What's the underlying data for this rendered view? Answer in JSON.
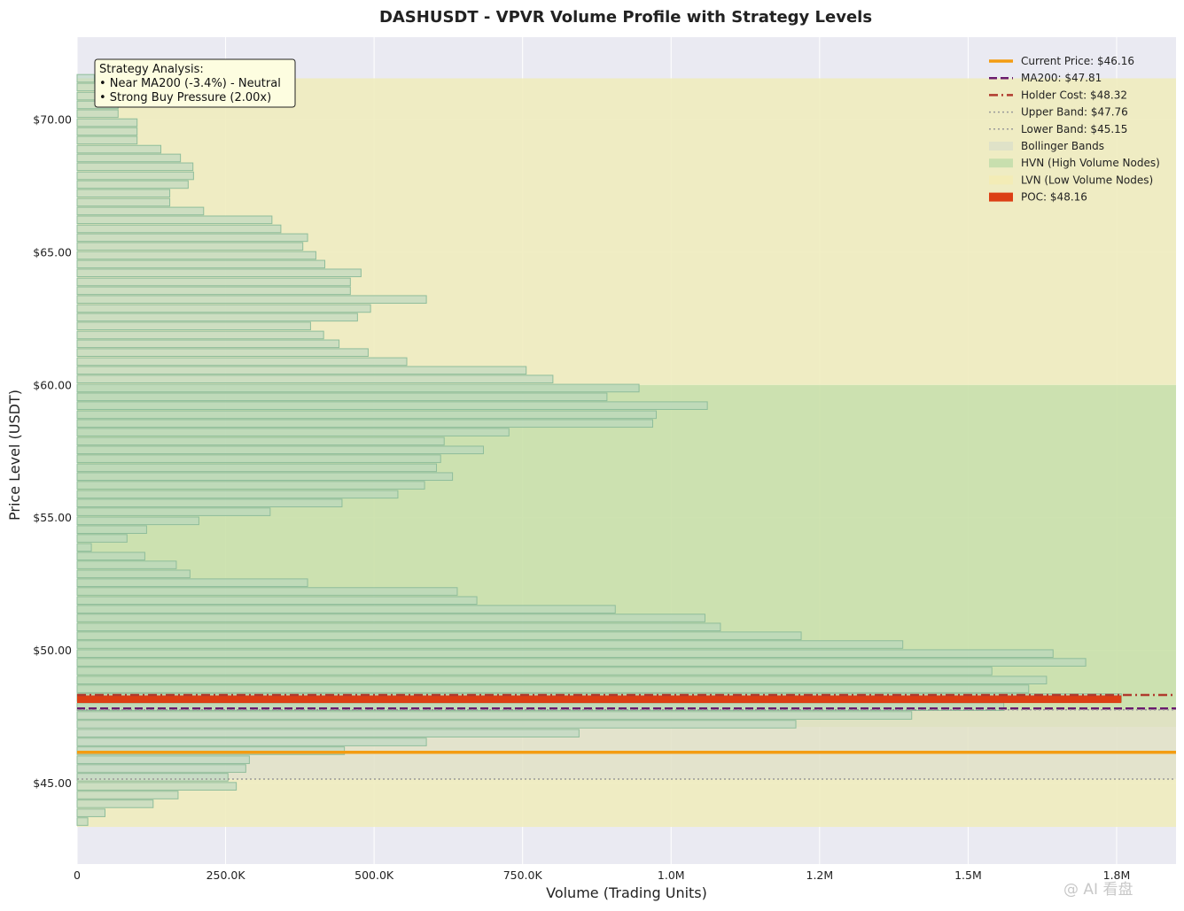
{
  "chart_data": {
    "type": "bar",
    "orientation": "horizontal",
    "title": "DASHUSDT - VPVR Volume Profile with Strategy Levels",
    "xlabel": "Volume (Trading Units)",
    "ylabel": "Price Level (USDT)",
    "xlim": [
      0,
      1850000
    ],
    "ylim": [
      41.95,
      73.1
    ],
    "x_ticks": [
      {
        "value": 0,
        "label": "0"
      },
      {
        "value": 250000,
        "label": "250.0K"
      },
      {
        "value": 500000,
        "label": "500.0K"
      },
      {
        "value": 750000,
        "label": "750.0K"
      },
      {
        "value": 1000000,
        "label": "1.0M"
      },
      {
        "value": 1250000,
        "label": "1.2M"
      },
      {
        "value": 1500000,
        "label": "1.5M"
      },
      {
        "value": 1750000,
        "label": "1.8M"
      }
    ],
    "y_ticks": [
      {
        "value": 45,
        "label": "$45.00"
      },
      {
        "value": 50,
        "label": "$50.00"
      },
      {
        "value": 55,
        "label": "$55.00"
      },
      {
        "value": 60,
        "label": "$60.00"
      },
      {
        "value": 65,
        "label": "$65.00"
      },
      {
        "value": 70,
        "label": "$70.00"
      }
    ],
    "grid": true,
    "bin_height": 0.333,
    "bins": [
      {
        "price": 43.55,
        "volume": 18000
      },
      {
        "price": 43.88,
        "volume": 47000
      },
      {
        "price": 44.22,
        "volume": 128000
      },
      {
        "price": 44.55,
        "volume": 170000
      },
      {
        "price": 44.88,
        "volume": 268000
      },
      {
        "price": 45.22,
        "volume": 254000
      },
      {
        "price": 45.55,
        "volume": 284000
      },
      {
        "price": 45.88,
        "volume": 290000
      },
      {
        "price": 46.22,
        "volume": 450000
      },
      {
        "price": 46.55,
        "volume": 588000
      },
      {
        "price": 46.88,
        "volume": 845000
      },
      {
        "price": 47.22,
        "volume": 1210000
      },
      {
        "price": 47.55,
        "volume": 1405000
      },
      {
        "price": 47.88,
        "volume": 1560000
      },
      {
        "price": 48.22,
        "volume": 1758000
      },
      {
        "price": 48.55,
        "volume": 1602000
      },
      {
        "price": 48.88,
        "volume": 1632000
      },
      {
        "price": 49.22,
        "volume": 1540000
      },
      {
        "price": 49.55,
        "volume": 1698000
      },
      {
        "price": 49.88,
        "volume": 1643000
      },
      {
        "price": 50.22,
        "volume": 1390000
      },
      {
        "price": 50.55,
        "volume": 1219000
      },
      {
        "price": 50.88,
        "volume": 1083000
      },
      {
        "price": 51.22,
        "volume": 1057000
      },
      {
        "price": 51.55,
        "volume": 906000
      },
      {
        "price": 51.88,
        "volume": 673000
      },
      {
        "price": 52.22,
        "volume": 640000
      },
      {
        "price": 52.55,
        "volume": 388000
      },
      {
        "price": 52.88,
        "volume": 190000
      },
      {
        "price": 53.22,
        "volume": 167000
      },
      {
        "price": 53.55,
        "volume": 114000
      },
      {
        "price": 53.88,
        "volume": 24000
      },
      {
        "price": 54.22,
        "volume": 84000
      },
      {
        "price": 54.55,
        "volume": 117000
      },
      {
        "price": 54.88,
        "volume": 205000
      },
      {
        "price": 55.22,
        "volume": 325000
      },
      {
        "price": 55.55,
        "volume": 446000
      },
      {
        "price": 55.88,
        "volume": 540000
      },
      {
        "price": 56.22,
        "volume": 585000
      },
      {
        "price": 56.55,
        "volume": 632000
      },
      {
        "price": 56.88,
        "volume": 605000
      },
      {
        "price": 57.22,
        "volume": 612000
      },
      {
        "price": 57.55,
        "volume": 684000
      },
      {
        "price": 57.88,
        "volume": 618000
      },
      {
        "price": 58.22,
        "volume": 727000
      },
      {
        "price": 58.55,
        "volume": 969000
      },
      {
        "price": 58.88,
        "volume": 975000
      },
      {
        "price": 59.22,
        "volume": 1061000
      },
      {
        "price": 59.55,
        "volume": 892000
      },
      {
        "price": 59.88,
        "volume": 946000
      },
      {
        "price": 60.22,
        "volume": 801000
      },
      {
        "price": 60.55,
        "volume": 756000
      },
      {
        "price": 60.88,
        "volume": 555000
      },
      {
        "price": 61.22,
        "volume": 490000
      },
      {
        "price": 61.55,
        "volume": 441000
      },
      {
        "price": 61.88,
        "volume": 415000
      },
      {
        "price": 62.22,
        "volume": 393000
      },
      {
        "price": 62.55,
        "volume": 472000
      },
      {
        "price": 62.88,
        "volume": 494000
      },
      {
        "price": 63.22,
        "volume": 588000
      },
      {
        "price": 63.55,
        "volume": 460000
      },
      {
        "price": 63.88,
        "volume": 460000
      },
      {
        "price": 64.22,
        "volume": 478000
      },
      {
        "price": 64.55,
        "volume": 417000
      },
      {
        "price": 64.88,
        "volume": 402000
      },
      {
        "price": 65.22,
        "volume": 380000
      },
      {
        "price": 65.55,
        "volume": 388000
      },
      {
        "price": 65.88,
        "volume": 343000
      },
      {
        "price": 66.22,
        "volume": 328000
      },
      {
        "price": 66.55,
        "volume": 213000
      },
      {
        "price": 66.88,
        "volume": 156000
      },
      {
        "price": 67.22,
        "volume": 156000
      },
      {
        "price": 67.55,
        "volume": 187000
      },
      {
        "price": 67.88,
        "volume": 196000
      },
      {
        "price": 68.22,
        "volume": 195000
      },
      {
        "price": 68.55,
        "volume": 174000
      },
      {
        "price": 68.88,
        "volume": 141000
      },
      {
        "price": 69.22,
        "volume": 101000
      },
      {
        "price": 69.55,
        "volume": 101000
      },
      {
        "price": 69.88,
        "volume": 101000
      },
      {
        "price": 70.22,
        "volume": 69000
      },
      {
        "price": 70.55,
        "volume": 69000
      },
      {
        "price": 70.88,
        "volume": 37000
      },
      {
        "price": 71.22,
        "volume": 37000
      },
      {
        "price": 71.55,
        "volume": 29000
      }
    ],
    "poc": {
      "label": "POC: $48.16",
      "price": 48.16,
      "volume": 1758000,
      "color": "#dc3f14"
    },
    "zones": {
      "lvn_upper": [
        60.0,
        71.55
      ],
      "hvn": [
        47.12,
        60.0
      ],
      "bollinger": [
        45.15,
        47.76
      ],
      "lvn_lower": [
        43.35,
        45.15
      ]
    },
    "lines": [
      {
        "key": "current",
        "label": "Current Price: $46.16",
        "price": 46.16,
        "color": "#f39c12",
        "style": "solid"
      },
      {
        "key": "ma200",
        "label": "MA200: $47.81",
        "price": 47.81,
        "color": "#6a1b6e",
        "style": "dashed"
      },
      {
        "key": "holder",
        "label": "Holder Cost: $48.32",
        "price": 48.32,
        "color": "#b03a2e",
        "style": "dashdot"
      },
      {
        "key": "upper",
        "label": "Upper Band: $47.76",
        "price": 47.76,
        "color": "#999999",
        "style": "dotted"
      },
      {
        "key": "lower",
        "label": "Lower Band: $45.15",
        "price": 45.15,
        "color": "#999999",
        "style": "dotted"
      }
    ],
    "legend_position": "top-right",
    "legend": [
      {
        "label": "Current Price: $46.16",
        "kind": "line",
        "color": "#f39c12",
        "style": "solid"
      },
      {
        "label": "MA200: $47.81",
        "kind": "line",
        "color": "#6a1b6e",
        "style": "dashed"
      },
      {
        "label": "Holder Cost: $48.32",
        "kind": "line",
        "color": "#b03a2e",
        "style": "dashdot"
      },
      {
        "label": "Upper Band: $47.76",
        "kind": "line",
        "color": "#999999",
        "style": "dotted"
      },
      {
        "label": "Lower Band: $45.15",
        "kind": "line",
        "color": "#999999",
        "style": "dotted"
      },
      {
        "label": "Bollinger Bands",
        "kind": "patch",
        "color": "#dfe2c8"
      },
      {
        "label": "HVN (High Volume Nodes)",
        "kind": "patch",
        "color": "#c8dfae"
      },
      {
        "label": "LVN (Low Volume Nodes)",
        "kind": "patch",
        "color": "#f3ecb6"
      },
      {
        "label": "POC: $48.16",
        "kind": "patch",
        "color": "#dc3f14"
      }
    ],
    "annotation": {
      "lines": [
        "Strategy Analysis:",
        "• Near MA200 (-3.4%) - Neutral",
        "• Strong Buy Pressure (2.00x)"
      ]
    },
    "colors": {
      "plot_bg": "#eaeaf2",
      "bar_fill": "#b5d6bf",
      "bar_stroke": "#8fbd9b",
      "lvn_zone": "#f0ecbe",
      "hvn_zone": "#c9e0a8",
      "bollinger_zone": "#e2e2c6"
    }
  },
  "watermark": "@ AI 看盘"
}
